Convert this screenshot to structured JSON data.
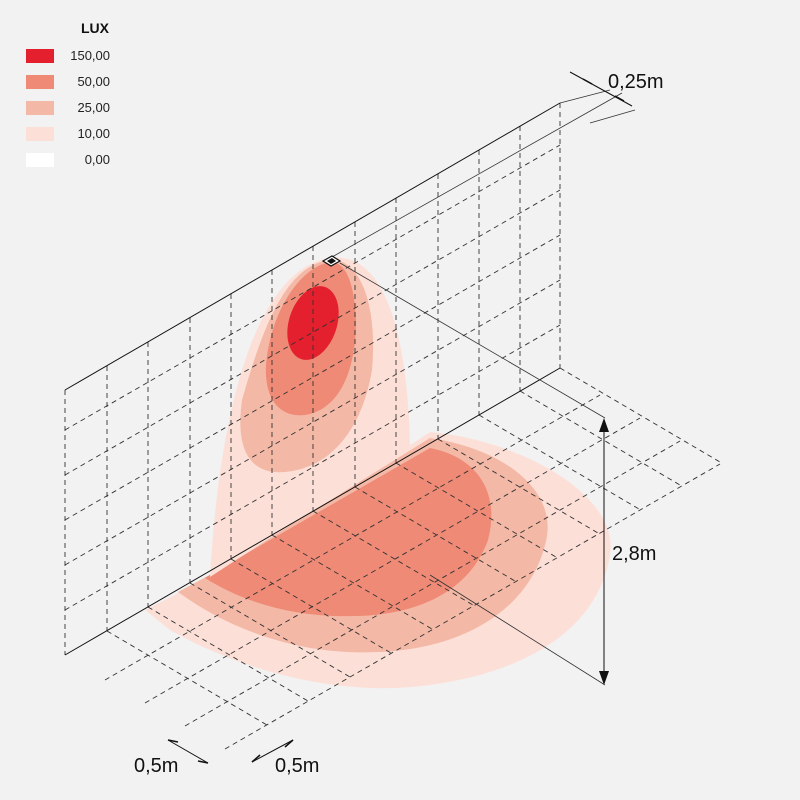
{
  "legend": {
    "title": "LUX",
    "items": [
      {
        "label": "150,00",
        "color": "#e41f2e"
      },
      {
        "label": "50,00",
        "color": "#ee8a75"
      },
      {
        "label": "25,00",
        "color": "#f4b8a6"
      },
      {
        "label": "10,00",
        "color": "#fce0d8"
      },
      {
        "label": "0,00",
        "color": "#ffffff"
      }
    ]
  },
  "dimensions": {
    "offset": "0,25m",
    "height": "2,8m",
    "grid_x": "0,5m",
    "grid_y": "0,5m"
  }
}
